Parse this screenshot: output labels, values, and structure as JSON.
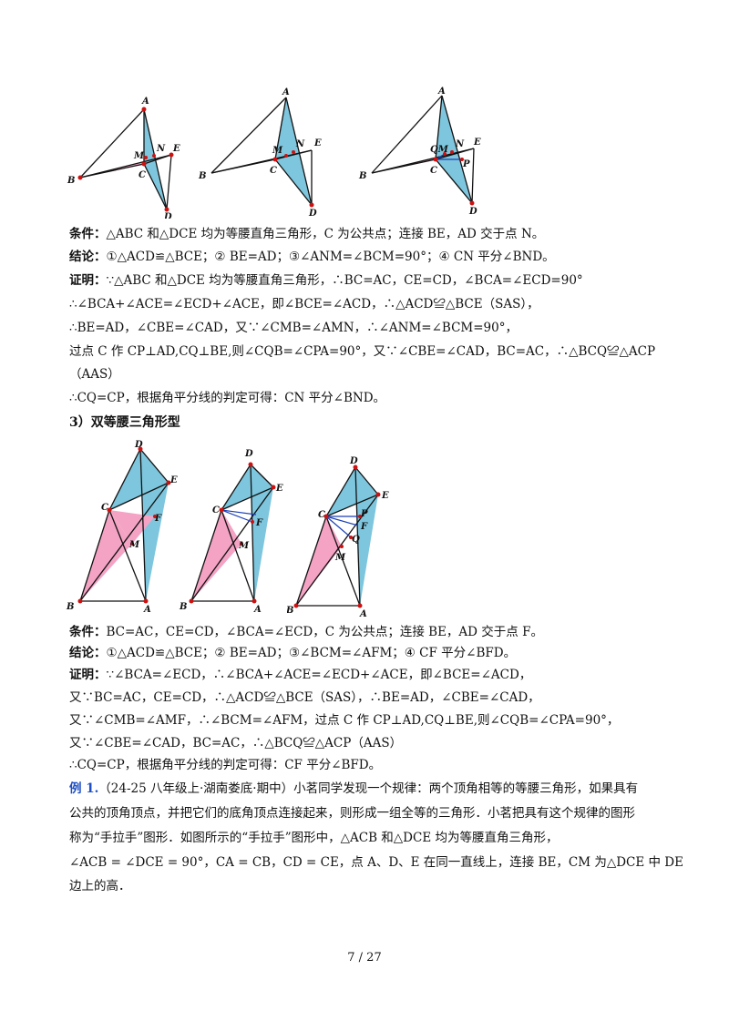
{
  "sec2": {
    "fig1": {
      "A": "A",
      "B": "B",
      "C": "C",
      "D": "D",
      "E": "E",
      "M": "M",
      "N": "N"
    },
    "fig2": {
      "A": "A",
      "B": "B",
      "C": "C",
      "D": "D",
      "E": "E",
      "M": "M",
      "N": "N"
    },
    "fig3": {
      "A": "A",
      "B": "B",
      "C": "C",
      "D": "D",
      "E": "E",
      "N": "N",
      "P": "P",
      "QM": "QM"
    },
    "cond_label": "条件：",
    "cond_text": "△ABC 和△DCE 均为等腰直角三角形，C 为公共点；连接 BE，AD 交于点 N。",
    "conc_label": "结论：",
    "conc_text": "①△ACD≌△BCE；② BE=AD；③∠ANM=∠BCM=90°；④ CN 平分∠BND。",
    "proof_label": "证明：",
    "proof_1": "∵△ABC 和△DCE 均为等腰直角三角形，∴BC=AC，CE=CD，∠BCA=∠ECD=90°",
    "proof_2": "∴∠BCA+∠ACE=∠ECD+∠ACE，即∠BCE=∠ACD，∴△ACD≌△BCE（SAS），",
    "proof_3": "∴BE=AD，∠CBE=∠CAD，又∵∠CMB=∠AMN，∴∠ANM=∠BCM=90°，",
    "proof_4": "过点 C 作 CP⊥AD,CQ⊥BE,则∠CQB=∠CPA=90°，又∵∠CBE=∠CAD，BC=AC，∴△BCQ≌△ACP",
    "proof_5": "（AAS）",
    "proof_6": "∴CQ=CP，根据角平分线的判定可得：CN 平分∠BND。"
  },
  "sec3": {
    "heading": "3）双等腰三角形型",
    "fig1": {
      "A": "A",
      "B": "B",
      "C": "C",
      "D": "D",
      "E": "E",
      "F": "F",
      "M": "M"
    },
    "fig2": {
      "A": "A",
      "B": "B",
      "C": "C",
      "D": "D",
      "E": "E",
      "F": "F",
      "M": "M"
    },
    "fig3": {
      "A": "A",
      "B": "B",
      "C": "C",
      "D": "D",
      "E": "E",
      "F": "F",
      "M": "M",
      "P": "P",
      "Q": "Q"
    },
    "cond_label": "条件：",
    "cond_text": "BC=AC，CE=CD，∠BCA=∠ECD，C 为公共点；连接 BE，AD 交于点 F。",
    "conc_label": "结论：",
    "conc_text": "①△ACD≌△BCE；② BE=AD；③∠BCM=∠AFM；④ CF 平分∠BFD。",
    "proof_label": "证明：",
    "proof_1": "∵∠BCA=∠ECD，∴∠BCA+∠ACE=∠ECD+∠ACE，即∠BCE=∠ACD，",
    "proof_2": "又∵BC=AC，CE=CD，∴△ACD≌△BCE（SAS），∴BE=AD，∠CBE=∠CAD，",
    "proof_3": "又∵∠CMB=∠AMF，∴∠BCM=∠AFM，过点 C 作 CP⊥AD,CQ⊥BE,则∠CQB=∠CPA=90°，",
    "proof_4": "又∵∠CBE=∠CAD，BC=AC，∴△BCQ≌△ACP（AAS）",
    "proof_5": "∴CQ=CP，根据角平分线的判定可得：CF 平分∠BFD。"
  },
  "example": {
    "num": "例 1.",
    "line_1": "（24-25 八年级上·湖南娄底·期中）小茗同学发现一个规律：两个顶角相等的等腰三角形，如果具有",
    "line_2": "公共的顶角顶点，并把它们的底角顶点连接起来，则形成一组全等的三角形．小茗把具有这个规律的图形",
    "line_3": "称为“手拉手”图形．如图所示的“手拉手”图形中，△ACB 和△DCE 均为等腰直角三角形，",
    "line_4": "∠ACB = ∠DCE = 90°，CA = CB，CD = CE，点 A、D、E 在同一直线上，连接 BE，CM 为△DCE 中 DE",
    "line_5": "边上的高．"
  },
  "page": "7 / 27",
  "colors": {
    "pink": "#f4a3c4",
    "blue": "#7ec6dd",
    "point": "#cc1111",
    "line": "#111111",
    "accent_line": "#1a3fb5"
  }
}
